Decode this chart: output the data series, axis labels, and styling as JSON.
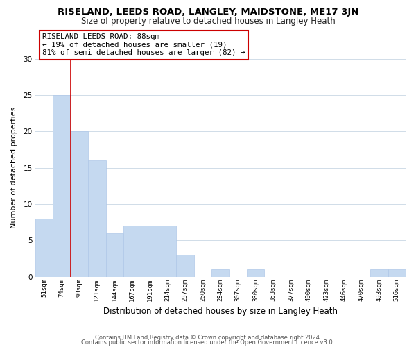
{
  "title": "RISELAND, LEEDS ROAD, LANGLEY, MAIDSTONE, ME17 3JN",
  "subtitle": "Size of property relative to detached houses in Langley Heath",
  "xlabel": "Distribution of detached houses by size in Langley Heath",
  "ylabel": "Number of detached properties",
  "categories": [
    "51sqm",
    "74sqm",
    "98sqm",
    "121sqm",
    "144sqm",
    "167sqm",
    "191sqm",
    "214sqm",
    "237sqm",
    "260sqm",
    "284sqm",
    "307sqm",
    "330sqm",
    "353sqm",
    "377sqm",
    "400sqm",
    "423sqm",
    "446sqm",
    "470sqm",
    "493sqm",
    "516sqm"
  ],
  "values": [
    8,
    25,
    20,
    16,
    6,
    7,
    7,
    7,
    3,
    0,
    1,
    0,
    1,
    0,
    0,
    0,
    0,
    0,
    0,
    1,
    1
  ],
  "bar_color": "#c5d9f0",
  "bar_edge_color": "#afc8e8",
  "annotation_title": "RISELAND LEEDS ROAD: 88sqm",
  "annotation_line1": "← 19% of detached houses are smaller (19)",
  "annotation_line2": "81% of semi-detached houses are larger (82) →",
  "vline_color": "#cc0000",
  "vline_x": 1.5,
  "ylim": [
    0,
    30
  ],
  "yticks": [
    0,
    5,
    10,
    15,
    20,
    25,
    30
  ],
  "footer1": "Contains HM Land Registry data © Crown copyright and database right 2024.",
  "footer2": "Contains public sector information licensed under the Open Government Licence v3.0.",
  "background_color": "#ffffff",
  "grid_color": "#d0dce8",
  "title_fontsize": 9.5,
  "subtitle_fontsize": 8.5
}
